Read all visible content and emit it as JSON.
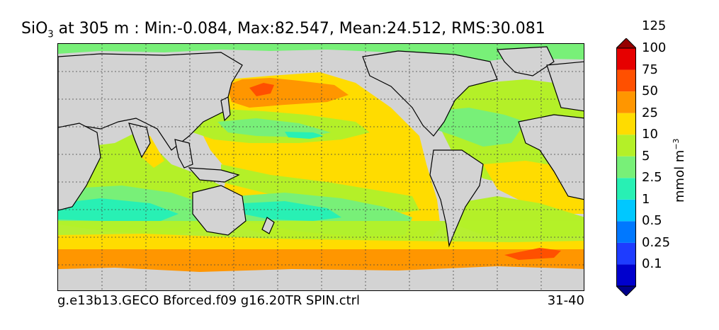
{
  "title": {
    "prefix": "SiO",
    "subscript": "3",
    "text": " at 305 m : Min:-0.084, Max:82.547, Mean:24.512, RMS:30.081"
  },
  "footer": {
    "run_name": "g.e13b13.GECO Bforced.f09 g16.20TR SPIN.ctrl",
    "years": "31-40"
  },
  "colorbar": {
    "units_text": "mmol m",
    "units_exponent": "−3",
    "levels": [
      "0.1",
      "0.25",
      "0.5",
      "1",
      "2.5",
      "5",
      "10",
      "25",
      "50",
      "75",
      "100",
      "125"
    ],
    "colors": [
      "#00008b",
      "#0000cd",
      "#1e3cff",
      "#0078ff",
      "#00c8ff",
      "#28f0b4",
      "#78f078",
      "#b4f028",
      "#ffdc00",
      "#ff9600",
      "#ff5000",
      "#e60000",
      "#960000"
    ]
  },
  "map": {
    "land_color": "#d3d3d3",
    "gridlines": "dotted",
    "projection": "cylindrical"
  }
}
